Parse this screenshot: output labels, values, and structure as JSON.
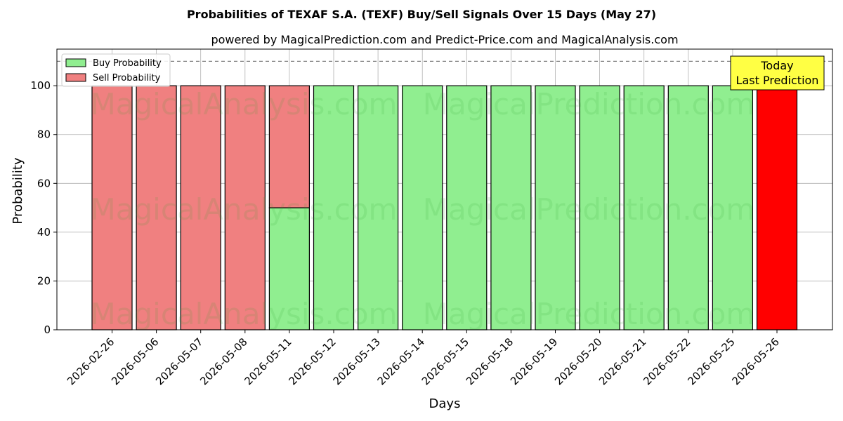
{
  "chart_data": {
    "type": "bar",
    "stacked": true,
    "title": "Probabilities of TEXAF S.A. (TEXF) Buy/Sell Signals Over 15 Days (May 27)",
    "subtitle": "powered by MagicalPrediction.com and Predict-Price.com and MagicalAnalysis.com",
    "xlabel": "Days",
    "ylabel": "Probability",
    "ylim": [
      0,
      115
    ],
    "yticks": [
      0,
      20,
      40,
      60,
      80,
      100
    ],
    "reference_line": 110,
    "grid": true,
    "legend_position": "top-left",
    "categories": [
      "2026-02-26",
      "2026-05-06",
      "2026-05-07",
      "2026-05-08",
      "2026-05-11",
      "2026-05-12",
      "2026-05-13",
      "2026-05-14",
      "2026-05-15",
      "2026-05-18",
      "2026-05-19",
      "2026-05-20",
      "2026-05-21",
      "2026-05-22",
      "2026-05-25",
      "2026-05-26"
    ],
    "series": [
      {
        "name": "Buy Probability",
        "color": "#90ee90",
        "values": [
          0,
          0,
          0,
          0,
          50,
          100,
          100,
          100,
          100,
          100,
          100,
          100,
          100,
          100,
          100,
          0
        ]
      },
      {
        "name": "Sell Probability",
        "color": "#f08080",
        "values": [
          100,
          100,
          100,
          100,
          50,
          0,
          0,
          0,
          0,
          0,
          0,
          0,
          0,
          0,
          0,
          100
        ]
      }
    ],
    "highlight": {
      "index": 15,
      "color": "#ff0000"
    },
    "annotation": {
      "lines": [
        "Today",
        "Last Prediction"
      ],
      "color": "#ffff44"
    },
    "watermarks": [
      "MagicalAnalysis.com",
      "MagicalPrediction.com"
    ]
  }
}
